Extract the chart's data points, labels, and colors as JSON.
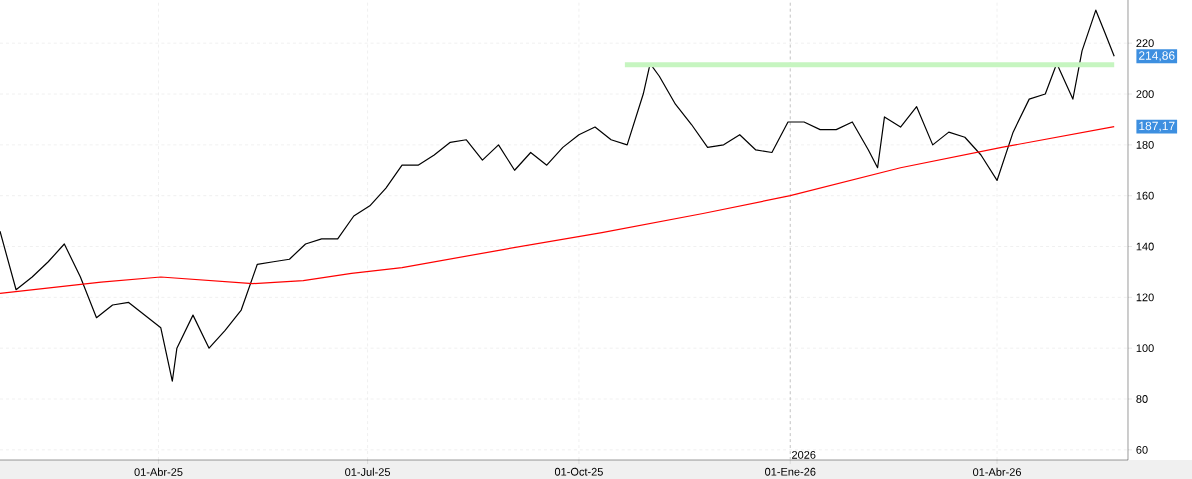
{
  "chart_data": {
    "type": "line",
    "grid": true,
    "marker": "none",
    "xlim": [
      "2025-01-22",
      "2026-05-28"
    ],
    "ylim": [
      56,
      237
    ],
    "xticks": [
      {
        "value": "2025-04-01",
        "label": "01-Abr-25"
      },
      {
        "value": "2025-07-01",
        "label": "01-Jul-25"
      },
      {
        "value": "2025-10-01",
        "label": "01-Oct-25"
      },
      {
        "value": "2026-01-01",
        "label": "01-Ene-26"
      },
      {
        "value": "2026-04-01",
        "label": "01-Abr-26"
      }
    ],
    "yticks": [
      60,
      80,
      100,
      120,
      140,
      160,
      180,
      200,
      220
    ],
    "ref_lines": [
      {
        "axis": "x",
        "value": "2026-01-01",
        "label": "2026",
        "color": "#c8c8c8",
        "line_style": "dashed"
      }
    ],
    "annotations": [
      {
        "text": "214,86",
        "x": "2026-05-22",
        "y": 214.86
      },
      {
        "text": "187,17",
        "x": "2026-05-22",
        "y": 187.17
      }
    ],
    "series": [
      {
        "color": "#000000",
        "x": [
          "2025-01-22",
          "2025-01-29",
          "2025-02-05",
          "2025-02-12",
          "2025-02-19",
          "2025-02-26",
          "2025-03-05",
          "2025-03-12",
          "2025-03-19",
          "2025-03-26",
          "2025-04-02",
          "2025-04-07",
          "2025-04-09",
          "2025-04-16",
          "2025-04-23",
          "2025-04-30",
          "2025-05-07",
          "2025-05-14",
          "2025-05-21",
          "2025-05-28",
          "2025-06-04",
          "2025-06-11",
          "2025-06-18",
          "2025-06-25",
          "2025-07-02",
          "2025-07-09",
          "2025-07-16",
          "2025-07-23",
          "2025-07-30",
          "2025-08-06",
          "2025-08-13",
          "2025-08-20",
          "2025-08-27",
          "2025-09-03",
          "2025-09-10",
          "2025-09-17",
          "2025-09-24",
          "2025-10-01",
          "2025-10-08",
          "2025-10-15",
          "2025-10-22",
          "2025-10-29",
          "2025-11-01",
          "2025-11-05",
          "2025-11-12",
          "2025-11-19",
          "2025-11-26",
          "2025-12-03",
          "2025-12-10",
          "2025-12-17",
          "2025-12-24",
          "2025-12-31",
          "2026-01-07",
          "2026-01-14",
          "2026-01-21",
          "2026-01-28",
          "2026-02-04",
          "2026-02-08",
          "2026-02-11",
          "2026-02-18",
          "2026-02-25",
          "2026-03-04",
          "2026-03-11",
          "2026-03-18",
          "2026-03-25",
          "2026-04-01",
          "2026-04-08",
          "2026-04-15",
          "2026-04-22",
          "2026-04-27",
          "2026-05-04",
          "2026-05-08",
          "2026-05-14",
          "2026-05-18",
          "2026-05-22"
        ],
        "values": [
          146,
          123,
          128,
          134,
          141,
          128,
          112,
          117,
          118,
          113,
          108,
          87,
          100,
          113,
          100,
          107,
          115,
          133,
          134,
          135,
          141,
          143,
          143,
          152,
          156,
          163,
          172,
          172,
          176,
          181,
          182,
          174,
          180,
          170,
          177,
          172,
          179,
          184,
          187,
          182,
          180,
          200,
          212,
          207,
          196,
          188,
          179,
          180,
          184,
          178,
          177,
          189,
          189,
          186,
          186,
          189,
          178,
          171,
          191,
          187,
          195,
          180,
          185,
          183,
          176,
          166,
          185,
          198,
          200,
          212,
          198,
          217,
          233,
          224,
          214.86
        ]
      },
      {
        "color": "#ff0000",
        "x": [
          "2025-01-22",
          "2025-03-07",
          "2025-04-02",
          "2025-05-12",
          "2025-06-03",
          "2025-06-24",
          "2025-07-16",
          "2025-08-29",
          "2025-10-11",
          "2025-11-24",
          "2026-01-01",
          "2026-02-18",
          "2026-04-03",
          "2026-05-22"
        ],
        "values": [
          121.6,
          126,
          128,
          125.4,
          126.6,
          129.4,
          131.7,
          138.8,
          145.5,
          153,
          160,
          171,
          179,
          187.17
        ]
      },
      {
        "color": "#c6f5c0",
        "x": [
          "2025-10-21",
          "2026-05-22"
        ],
        "values": [
          211.5,
          211.5
        ]
      }
    ]
  }
}
